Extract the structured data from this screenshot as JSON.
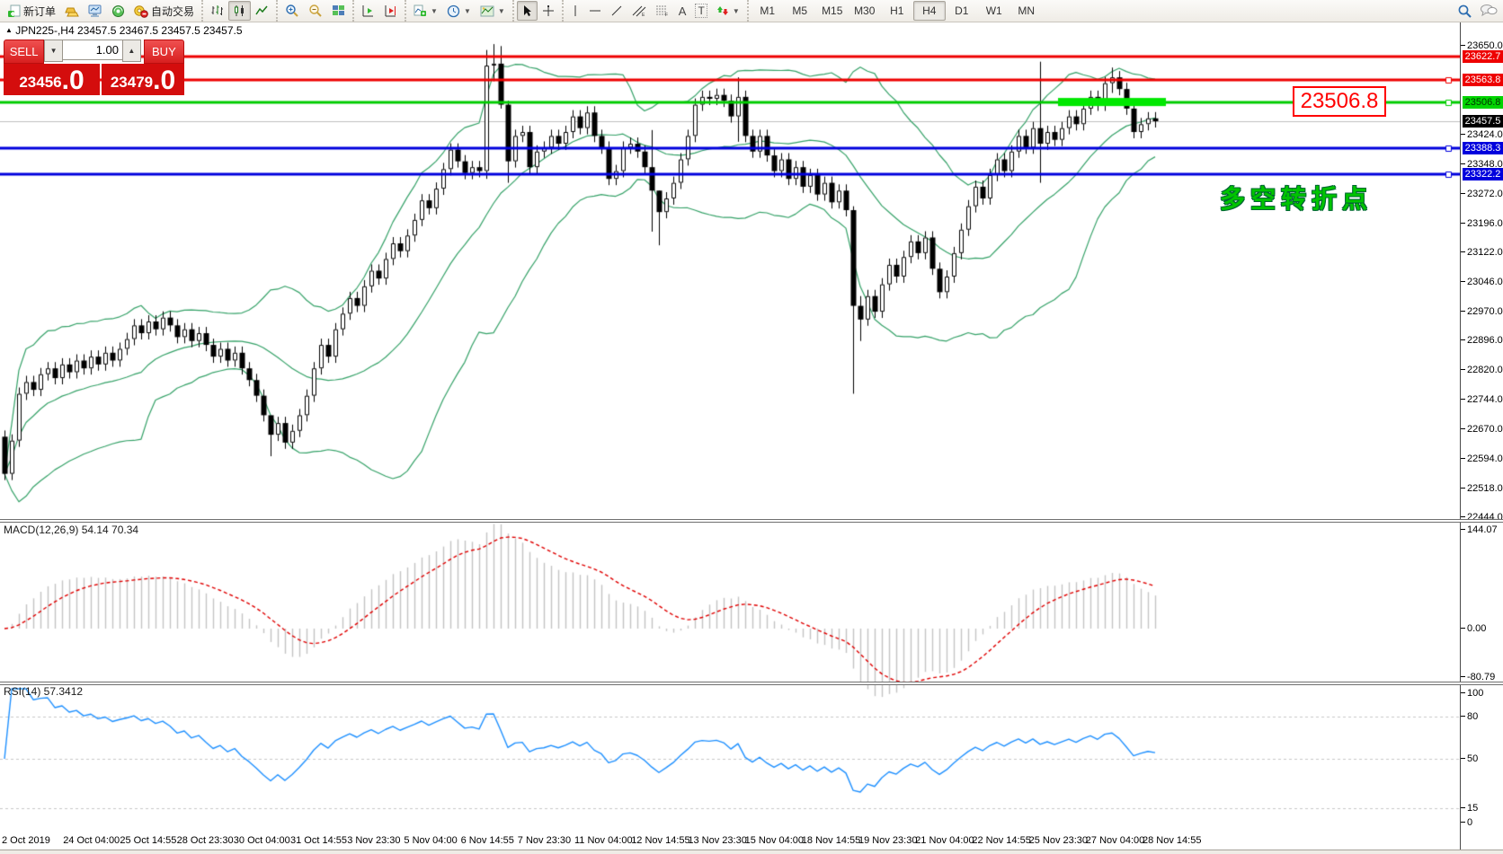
{
  "window": {
    "title_marker": "▲",
    "title_symbol": "JPN225-,H4",
    "title_ohlc": "23457.5 23467.5 23457.5 23457.5"
  },
  "toolbar": {
    "new_order_label": "新订单",
    "auto_trading_label": "自动交易",
    "timeframes": [
      "M1",
      "M5",
      "M15",
      "M30",
      "H1",
      "H4",
      "D1",
      "W1",
      "MN"
    ],
    "active_timeframe": "H4",
    "text_tool_a": "A",
    "text_tool_t": "T"
  },
  "one_click": {
    "sell_label": "SELL",
    "buy_label": "BUY",
    "volume": "1.00",
    "bid_int": "23456",
    "bid_dec": ".0",
    "ask_int": "23479",
    "ask_dec": ".0"
  },
  "panels": {
    "macd_label": "MACD(12,26,9) 54.14 70.34",
    "rsi_label": "RSI(14) 57.3412"
  },
  "annotations": {
    "turning_point_text": "多空转折点",
    "level_label": "23506.8"
  },
  "axis": {
    "price_ticks": [
      23650.0,
      23424.0,
      23348.0,
      23272.0,
      23196.0,
      23122.0,
      23046.0,
      22970.0,
      22896.0,
      22820.0,
      22744.0,
      22670.0,
      22594.0,
      22518.0,
      22444.0
    ],
    "price_badges": [
      {
        "label": "23622.7",
        "price": 23622.7,
        "bg": "#ee0000",
        "fg": "#ffffff"
      },
      {
        "label": "23563.8",
        "price": 23563.8,
        "bg": "#ee0000",
        "fg": "#ffffff"
      },
      {
        "label": "23506.8",
        "price": 23506.8,
        "bg": "#00d400",
        "fg": "#003300"
      },
      {
        "label": "23457.5",
        "price": 23457.5,
        "bg": "#000000",
        "fg": "#ffffff"
      },
      {
        "label": "23388.3",
        "price": 23388.3,
        "bg": "#0000dd",
        "fg": "#ffffff"
      },
      {
        "label": "23322.2",
        "price": 23322.2,
        "bg": "#0000dd",
        "fg": "#ffffff"
      }
    ],
    "macd_ticks": [
      {
        "label": "144.07",
        "v": 144.07
      },
      {
        "label": "0.00",
        "v": 0
      },
      {
        "label": "-80.79",
        "v": -80.79
      }
    ],
    "rsi_ticks": [
      {
        "label": "100",
        "v": 100
      },
      {
        "label": "80",
        "v": 80
      },
      {
        "label": "50",
        "v": 50
      },
      {
        "label": "15",
        "v": 15
      },
      {
        "label": "0",
        "v": 0
      }
    ],
    "dates": [
      "2 Oct 2019",
      "24 Oct 04:00",
      "25 Oct 14:55",
      "28 Oct 23:30",
      "30 Oct 04:00",
      "31 Oct 14:55",
      "3 Nov 23:30",
      "5 Nov 04:00",
      "6 Nov 14:55",
      "7 Nov 23:30",
      "11 Nov 04:00",
      "12 Nov 14:55",
      "13 Nov 23:30",
      "15 Nov 04:00",
      "18 Nov 14:55",
      "19 Nov 23:30",
      "21 Nov 04:00",
      "22 Nov 14:55",
      "25 Nov 23:30",
      "27 Nov 04:00",
      "28 Nov 14:55"
    ]
  },
  "chart_data": {
    "type": "candlestick",
    "symbol": "JPN225-",
    "period": "H4",
    "visible_price_range": [
      22444.0,
      23650.0
    ],
    "last_price": 23457.5,
    "closes": [
      22555,
      22640,
      22760,
      22790,
      22770,
      22810,
      22825,
      22800,
      22835,
      22815,
      22845,
      22825,
      22855,
      22835,
      22865,
      22845,
      22875,
      22900,
      22935,
      22915,
      22945,
      22925,
      22955,
      22935,
      22905,
      22925,
      22895,
      22915,
      22885,
      22855,
      22875,
      22845,
      22865,
      22825,
      22795,
      22755,
      22705,
      22655,
      22685,
      22635,
      22665,
      22705,
      22755,
      22825,
      22885,
      22855,
      22925,
      22965,
      23005,
      22985,
      23035,
      23075,
      23055,
      23105,
      23145,
      23125,
      23165,
      23205,
      23255,
      23235,
      23285,
      23335,
      23385,
      23355,
      23325,
      23340,
      23330,
      23600,
      23605,
      23500,
      23355,
      23420,
      23430,
      23340,
      23380,
      23390,
      23420,
      23400,
      23430,
      23470,
      23440,
      23480,
      23420,
      23390,
      23310,
      23330,
      23390,
      23400,
      23380,
      23340,
      23280,
      23225,
      23260,
      23300,
      23360,
      23420,
      23500,
      23520,
      23515,
      23525,
      23510,
      23470,
      23520,
      23420,
      23380,
      23420,
      23370,
      23330,
      23360,
      23310,
      23340,
      23290,
      23320,
      23270,
      23300,
      23250,
      23280,
      23230,
      22985,
      22950,
      23010,
      22970,
      23040,
      23090,
      23060,
      23110,
      23150,
      23120,
      23160,
      23080,
      23020,
      23060,
      23120,
      23180,
      23240,
      23290,
      23260,
      23320,
      23360,
      23330,
      23380,
      23420,
      23390,
      23440,
      23400,
      23430,
      23410,
      23440,
      23470,
      23450,
      23490,
      23520,
      23500,
      23555,
      23570,
      23540,
      23490,
      23430,
      23450,
      23465,
      23457.5
    ],
    "first_open": 22650,
    "wick_overrides": {
      "37": [
        22680,
        22600
      ],
      "67": [
        23640,
        23310
      ],
      "68": [
        23655,
        23560
      ],
      "69": [
        23650,
        23490
      ],
      "70": [
        23510,
        23300
      ],
      "90": [
        23435,
        23175
      ],
      "91": [
        23280,
        23140
      ],
      "102": [
        23570,
        23405
      ],
      "118": [
        23240,
        22760
      ],
      "119": [
        23010,
        22895
      ],
      "144": [
        23610,
        23300
      ],
      "154": [
        23595,
        23530
      ]
    },
    "levels": [
      {
        "price": 23622.7,
        "color": "#ee0000",
        "width": 3,
        "handles": false
      },
      {
        "price": 23563.8,
        "color": "#ee0000",
        "width": 3,
        "handles": true
      },
      {
        "price": 23506.8,
        "color": "#00cc00",
        "width": 3,
        "handles": true
      },
      {
        "price": 23457.5,
        "color": "#c0c0c0",
        "width": 1,
        "handles": false
      },
      {
        "price": 23388.3,
        "color": "#0000dd",
        "width": 3,
        "handles": true
      },
      {
        "price": 23322.2,
        "color": "#0000dd",
        "width": 3,
        "handles": true
      }
    ],
    "highlight_bar": {
      "price": 23506.8,
      "from_index": 147,
      "to_index": 161,
      "color": "#00e800"
    },
    "indicators": {
      "bollinger": {
        "period": 20,
        "deviation": 2,
        "color": "#35a268"
      },
      "macd": {
        "fast": 12,
        "slow": 26,
        "signal": 9,
        "value": 54.14,
        "signal_value": 70.34,
        "histogram_color": "#c4c4c4",
        "signal_color": "#e00000",
        "scale_max": 144.07,
        "scale_min": -80.79
      },
      "rsi": {
        "period": 14,
        "value": 57.3412,
        "color": "#1e90ff",
        "guide_levels": [
          80,
          50,
          15
        ]
      }
    }
  }
}
